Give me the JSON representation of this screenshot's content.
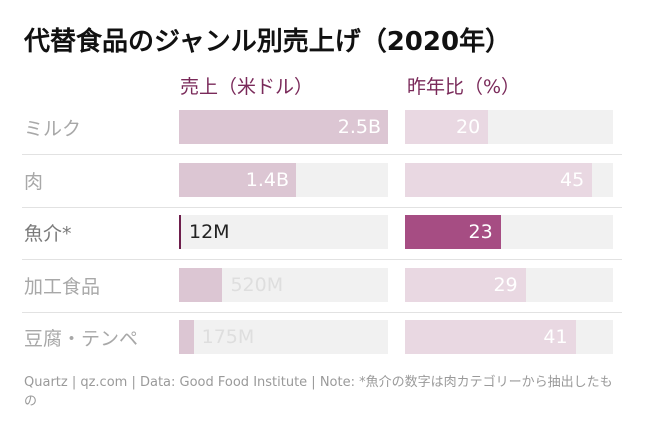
{
  "title": "代替食品のジャンル別売上げ（2020年）",
  "columns": {
    "sales": "売上（米ドル）",
    "yoy": "昨年比（%）"
  },
  "colors": {
    "title": "#111111",
    "header": "#7a2a5a",
    "label_muted": "#a8a8a8",
    "label_highlight": "#7a7a7a",
    "track": "#f1f1f1",
    "sales_fill_muted": "#dcc6d3",
    "yoy_fill_muted": "#e9d8e2",
    "yoy_fill_highlight": "#a64d83",
    "sales_marker_highlight": "#6e1e4c"
  },
  "highlight_row": "魚介*",
  "chart_data": {
    "type": "bar",
    "categories": [
      "ミルク",
      "肉",
      "魚介*",
      "加工食品",
      "豆腐・テンペ"
    ],
    "series": [
      {
        "name": "売上（米ドル）",
        "values": [
          2500000000,
          1400000000,
          12000000,
          520000000,
          175000000
        ],
        "labels": [
          "2.5B",
          "1.4B",
          "12M",
          "520M",
          "175M"
        ],
        "xlim": [
          0,
          2500000000
        ]
      },
      {
        "name": "昨年比（%）",
        "values": [
          20,
          45,
          23,
          29,
          41
        ],
        "labels": [
          "20",
          "45",
          "23",
          "29",
          "41"
        ],
        "xlim": [
          0,
          50
        ]
      }
    ]
  },
  "source_note": "Quartz | qz.com | Data: Good Food Institute | Note: *魚介の数字は肉カテゴリーから抽出したもの"
}
